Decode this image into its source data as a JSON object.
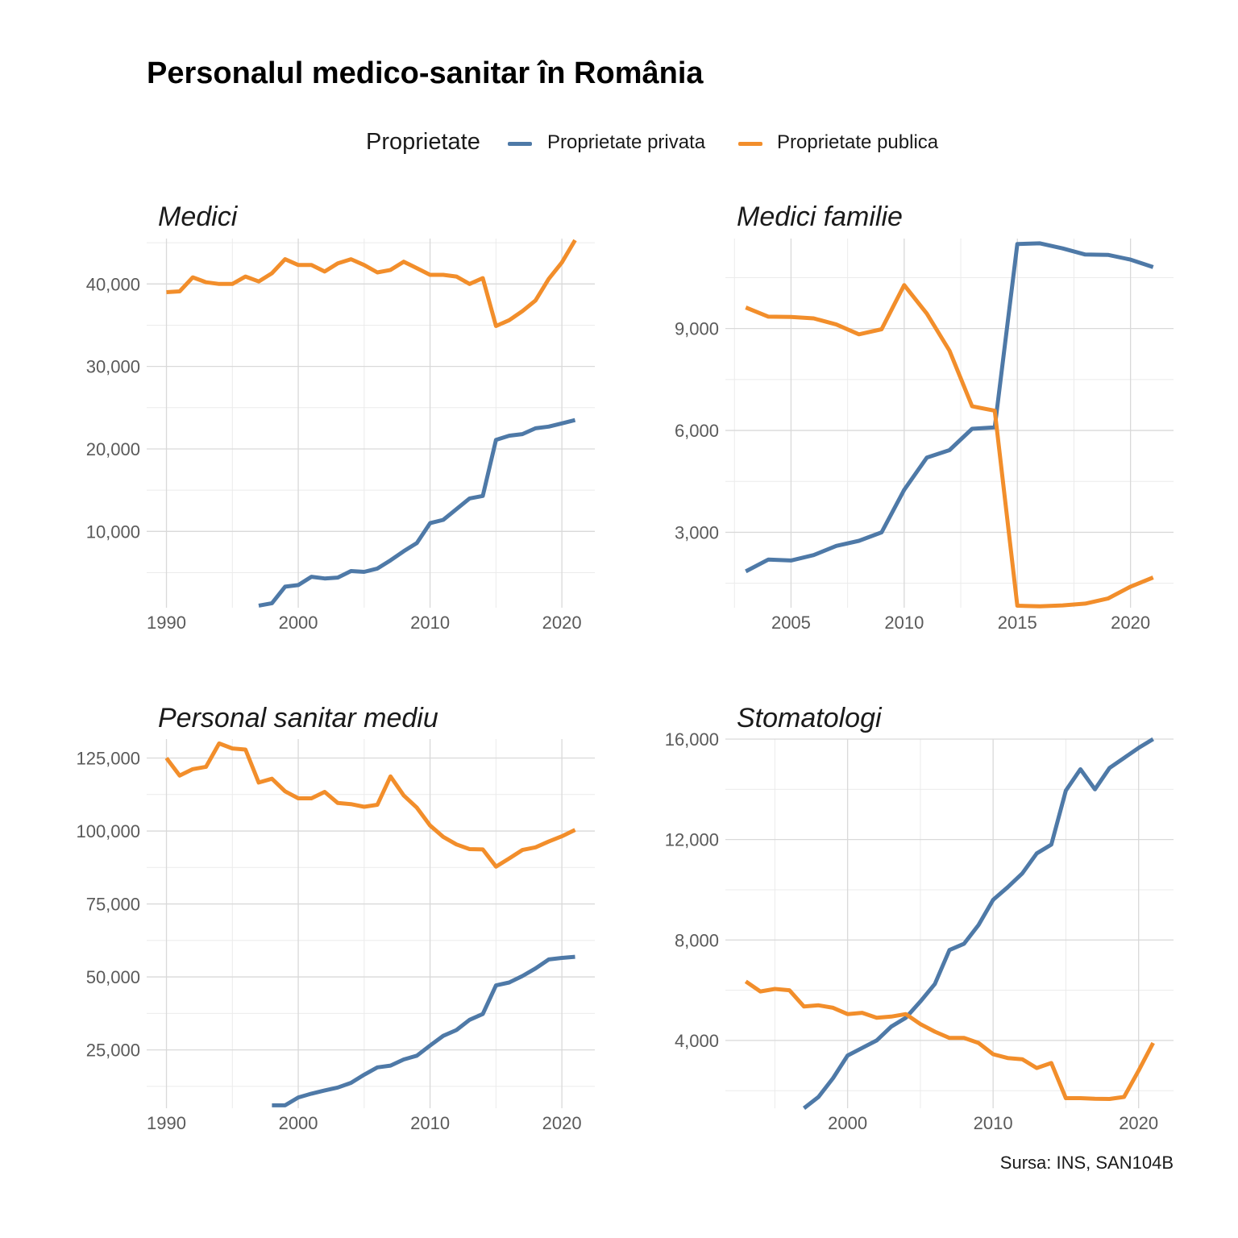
{
  "title": "Personalul medico-sanitar în România",
  "legend": {
    "title": "Proprietate",
    "items": [
      {
        "label": "Proprietate privata",
        "color": "#4e79a7"
      },
      {
        "label": "Proprietate publica",
        "color": "#f28e2b"
      }
    ]
  },
  "caption": "Sursa: INS, SAN104B",
  "chart_data": [
    {
      "type": "line",
      "title": "Medici",
      "xlim": [
        1988.5,
        2022.5
      ],
      "ylim": [
        750,
        45500
      ],
      "xticks": [
        1990,
        2000,
        2010,
        2020
      ],
      "yticks": [
        10000,
        20000,
        30000,
        40000
      ],
      "series": [
        {
          "name": "Proprietate privata",
          "x": [
            1997,
            1998,
            1999,
            2000,
            2001,
            2002,
            2003,
            2004,
            2005,
            2006,
            2007,
            2008,
            2009,
            2010,
            2011,
            2012,
            2013,
            2014,
            2015,
            2016,
            2017,
            2018,
            2019,
            2020,
            2021
          ],
          "values": [
            1000,
            1300,
            3300,
            3500,
            4500,
            4300,
            4400,
            5200,
            5100,
            5500,
            6500,
            7600,
            8600,
            11000,
            11400,
            12700,
            14000,
            14300,
            21100,
            21600,
            21800,
            22500,
            22700,
            23100,
            23500
          ]
        },
        {
          "name": "Proprietate publica",
          "x": [
            1990,
            1991,
            1992,
            1993,
            1994,
            1995,
            1996,
            1997,
            1998,
            1999,
            2000,
            2001,
            2002,
            2003,
            2004,
            2005,
            2006,
            2007,
            2008,
            2009,
            2010,
            2011,
            2012,
            2013,
            2014,
            2015,
            2016,
            2017,
            2018,
            2019,
            2020,
            2021
          ],
          "values": [
            39000,
            39100,
            40800,
            40200,
            40000,
            40000,
            40900,
            40300,
            41300,
            43000,
            42300,
            42300,
            41500,
            42500,
            43000,
            42300,
            41400,
            41700,
            42700,
            41900,
            41100,
            41100,
            40900,
            40000,
            40700,
            34900,
            35600,
            36700,
            38000,
            40600,
            42600,
            45300
          ]
        }
      ]
    },
    {
      "type": "line",
      "title": "Medici familie",
      "xlim": [
        2002.1,
        2021.9
      ],
      "ylim": [
        780,
        11650
      ],
      "xticks": [
        2005,
        2010,
        2015,
        2020
      ],
      "yticks": [
        3000,
        6000,
        9000
      ],
      "series": [
        {
          "name": "Proprietate privata",
          "x": [
            2003,
            2004,
            2005,
            2006,
            2007,
            2008,
            2009,
            2010,
            2011,
            2012,
            2013,
            2014,
            2015,
            2016,
            2017,
            2018,
            2019,
            2020,
            2021
          ],
          "values": [
            1850,
            2200,
            2170,
            2330,
            2600,
            2750,
            3000,
            4250,
            5200,
            5420,
            6050,
            6090,
            11490,
            11510,
            11360,
            11180,
            11170,
            11030,
            10810
          ]
        },
        {
          "name": "Proprietate publica",
          "x": [
            2003,
            2004,
            2005,
            2006,
            2007,
            2008,
            2009,
            2010,
            2011,
            2012,
            2013,
            2014,
            2015,
            2016,
            2017,
            2018,
            2019,
            2020,
            2021
          ],
          "values": [
            9620,
            9350,
            9340,
            9300,
            9120,
            8830,
            8980,
            10280,
            9440,
            8350,
            6710,
            6580,
            840,
            820,
            850,
            900,
            1050,
            1400,
            1670
          ]
        }
      ]
    },
    {
      "type": "line",
      "title": "Personal sanitar mediu",
      "xlim": [
        1988.5,
        2022.5
      ],
      "ylim": [
        5000,
        131500
      ],
      "xticks": [
        1990,
        2000,
        2010,
        2020
      ],
      "yticks": [
        25000,
        50000,
        75000,
        100000,
        125000
      ],
      "series": [
        {
          "name": "Proprietate privata",
          "x": [
            1998,
            1999,
            2000,
            2001,
            2002,
            2003,
            2004,
            2005,
            2006,
            2007,
            2008,
            2009,
            2010,
            2011,
            2012,
            2013,
            2014,
            2015,
            2016,
            2017,
            2018,
            2019,
            2020,
            2021
          ],
          "values": [
            6000,
            6000,
            8700,
            10000,
            11100,
            12100,
            13700,
            16500,
            19000,
            19600,
            21700,
            23000,
            26500,
            29800,
            31800,
            35300,
            37300,
            47100,
            48100,
            50300,
            52900,
            56000,
            56500,
            56900
          ]
        },
        {
          "name": "Proprietate publica",
          "x": [
            1990,
            1991,
            1992,
            1993,
            1994,
            1995,
            1996,
            1997,
            1998,
            1999,
            2000,
            2001,
            2002,
            2003,
            2004,
            2005,
            2006,
            2007,
            2008,
            2009,
            2010,
            2011,
            2012,
            2013,
            2014,
            2015,
            2016,
            2017,
            2018,
            2019,
            2020,
            2021
          ],
          "values": [
            125000,
            119000,
            121200,
            122000,
            130000,
            128300,
            127900,
            116600,
            117900,
            113600,
            111200,
            111200,
            113400,
            109600,
            109200,
            108300,
            109000,
            118700,
            112200,
            108000,
            101900,
            98000,
            95400,
            93800,
            93700,
            87800,
            90600,
            93500,
            94400,
            96400,
            98200,
            100400
          ]
        }
      ]
    },
    {
      "type": "line",
      "title": "Stomatologi",
      "xlim": [
        1991.6,
        2022.4
      ],
      "ylim": [
        1300,
        16000
      ],
      "xticks": [
        2000,
        2010,
        2020
      ],
      "yticks": [
        4000,
        8000,
        12000,
        16000
      ],
      "series": [
        {
          "name": "Proprietate privata",
          "x": [
            1997,
            1998,
            1999,
            2000,
            2001,
            2002,
            2003,
            2004,
            2005,
            2006,
            2007,
            2008,
            2009,
            2010,
            2011,
            2012,
            2013,
            2014,
            2015,
            2016,
            2017,
            2018,
            2019,
            2020,
            2021
          ],
          "values": [
            1300,
            1750,
            2500,
            3400,
            3700,
            4000,
            4550,
            4900,
            5550,
            6250,
            7600,
            7850,
            8600,
            9600,
            10100,
            10650,
            11450,
            11800,
            13950,
            14800,
            14000,
            14850,
            15250,
            15650,
            16000
          ]
        },
        {
          "name": "Proprietate publica",
          "x": [
            1993,
            1994,
            1995,
            1996,
            1997,
            1998,
            1999,
            2000,
            2001,
            2002,
            2003,
            2004,
            2005,
            2006,
            2007,
            2008,
            2009,
            2010,
            2011,
            2012,
            2013,
            2014,
            2015,
            2016,
            2017,
            2018,
            2019,
            2020,
            2021
          ],
          "values": [
            6350,
            5950,
            6050,
            6000,
            5350,
            5400,
            5300,
            5050,
            5100,
            4900,
            4950,
            5050,
            4650,
            4350,
            4100,
            4100,
            3900,
            3450,
            3300,
            3250,
            2900,
            3100,
            1700,
            1700,
            1680,
            1670,
            1750,
            2800,
            3900
          ]
        }
      ]
    }
  ]
}
